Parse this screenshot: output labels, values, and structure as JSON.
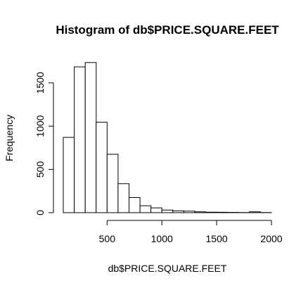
{
  "chart_data": {
    "type": "bar",
    "title": "Histogram of db$PRICE.SQUARE.FEET",
    "xlabel": "db$PRICE.SQUARE.FEET",
    "ylabel": "Frequency",
    "bin_width": 100,
    "bins": [
      {
        "start": 100,
        "end": 200,
        "count": 870
      },
      {
        "start": 200,
        "end": 300,
        "count": 1685
      },
      {
        "start": 300,
        "end": 400,
        "count": 1735
      },
      {
        "start": 400,
        "end": 500,
        "count": 1045
      },
      {
        "start": 500,
        "end": 600,
        "count": 675
      },
      {
        "start": 600,
        "end": 700,
        "count": 335
      },
      {
        "start": 700,
        "end": 800,
        "count": 175
      },
      {
        "start": 800,
        "end": 900,
        "count": 80
      },
      {
        "start": 900,
        "end": 1000,
        "count": 55
      },
      {
        "start": 1000,
        "end": 1100,
        "count": 30
      },
      {
        "start": 1100,
        "end": 1200,
        "count": 20
      },
      {
        "start": 1200,
        "end": 1300,
        "count": 18
      },
      {
        "start": 1300,
        "end": 1400,
        "count": 10
      },
      {
        "start": 1400,
        "end": 1500,
        "count": 6
      },
      {
        "start": 1500,
        "end": 1600,
        "count": 5
      },
      {
        "start": 1600,
        "end": 1700,
        "count": 3
      },
      {
        "start": 1700,
        "end": 1800,
        "count": 2
      },
      {
        "start": 1800,
        "end": 1900,
        "count": 10
      },
      {
        "start": 1900,
        "end": 2000,
        "count": 2
      }
    ],
    "xlim": [
      100,
      2000
    ],
    "ylim": [
      0,
      1750
    ],
    "x_ticks": [
      500,
      1000,
      1500,
      2000
    ],
    "x_tick_labels": [
      "500",
      "1000",
      "1500",
      "2000"
    ],
    "y_ticks": [
      0,
      500,
      1000,
      1500
    ],
    "y_tick_labels": [
      "0",
      "500",
      "1000",
      "1500"
    ],
    "grid": false,
    "legend": "none"
  }
}
